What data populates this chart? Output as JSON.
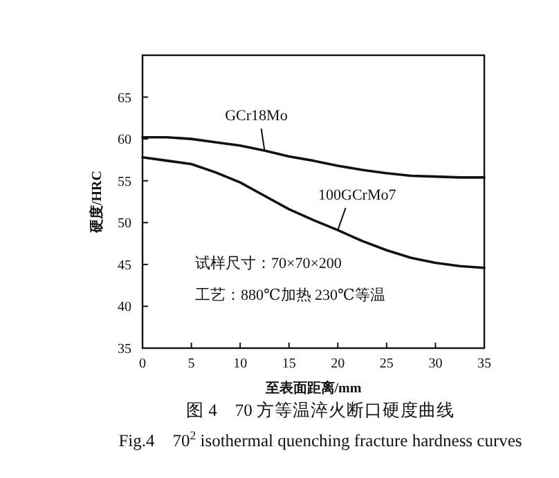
{
  "chart_data": {
    "type": "line",
    "title": "图 4　70 方等温淬火断口硬度曲线",
    "subtitle": "Fig.4　70$^{2}$ isothermal quenching fracture hardness curves",
    "xlabel": "至表面距离/mm",
    "ylabel": "硬度/HRC",
    "x": [
      0,
      2.5,
      5,
      7.5,
      10,
      12.5,
      15,
      17.5,
      20,
      22.5,
      25,
      27.5,
      30,
      32.5,
      35
    ],
    "series": [
      {
        "name": "GCr18Mo",
        "color": "#111111",
        "values": [
          60.2,
          60.2,
          60,
          59.6,
          59.2,
          58.6,
          57.9,
          57.4,
          56.8,
          56.3,
          55.9,
          55.6,
          55.5,
          55.4,
          55.4
        ]
      },
      {
        "name": "100GCrMo7",
        "color": "#111111",
        "values": [
          57.8,
          57.4,
          57,
          56,
          54.8,
          53.2,
          51.6,
          50.3,
          49.1,
          47.8,
          46.7,
          45.8,
          45.2,
          44.8,
          44.6
        ]
      }
    ],
    "xlim": [
      0,
      35
    ],
    "ylim": [
      35,
      70
    ],
    "xticks": [
      0,
      5,
      10,
      15,
      20,
      25,
      30,
      35
    ],
    "yticks": [
      35,
      40,
      45,
      50,
      55,
      60,
      65
    ],
    "annotations": [
      "试样尺寸：70×70×200",
      "工艺：880℃加热 230℃等温"
    ],
    "marker": "none",
    "line_style": "solid",
    "grid": false,
    "legend": false
  }
}
